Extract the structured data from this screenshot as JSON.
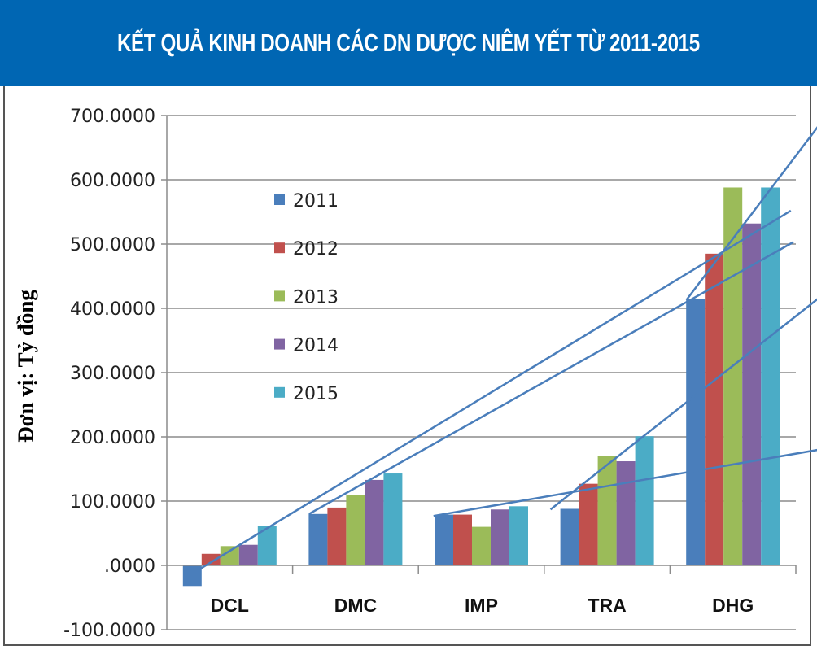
{
  "header": {
    "title": "KẾT QUẢ KINH DOANH CÁC DN DƯỢC NIÊM YẾT TỪ 2011-2015"
  },
  "chart_data": {
    "type": "bar",
    "title": "KẾT QUẢ KINH DOANH CÁC DN DƯỢC NIÊM YẾT TỪ 2011-2015",
    "xlabel": "",
    "ylabel": "Đơn vị:  Tỷ đồng",
    "ylim": [
      -100,
      700
    ],
    "yticks": [
      -100,
      0,
      100,
      200,
      300,
      400,
      500,
      600,
      700
    ],
    "ytick_labels": [
      "-100.0000",
      ".0000",
      "100.0000",
      "200.0000",
      "300.0000",
      "400.0000",
      "500.0000",
      "600.0000",
      "700.0000"
    ],
    "grid": true,
    "legend_position": "upper-left-inside",
    "categories": [
      "DCL",
      "DMC",
      "IMP",
      "TRA",
      "DHG"
    ],
    "series": [
      {
        "name": "2011",
        "color": "#4a7ebb",
        "values": [
          -32,
          80,
          79,
          88,
          414
        ]
      },
      {
        "name": "2012",
        "color": "#c0504d",
        "values": [
          18,
          90,
          79,
          127,
          485
        ]
      },
      {
        "name": "2013",
        "color": "#9bbb59",
        "values": [
          30,
          109,
          60,
          170,
          588
        ]
      },
      {
        "name": "2014",
        "color": "#8064a2",
        "values": [
          32,
          133,
          87,
          162,
          532
        ]
      },
      {
        "name": "2015",
        "color": "#4bacc6",
        "values": [
          61,
          143,
          92,
          201,
          588
        ]
      }
    ],
    "trend_lines": [
      {
        "color": "#4a7ebb",
        "from": [
          0.76,
          -6
        ],
        "to": [
          5.46,
          552
        ]
      },
      {
        "color": "#4a7ebb",
        "from": [
          1.63,
          80
        ],
        "to": [
          5.48,
          503
        ]
      },
      {
        "color": "#4a7ebb",
        "from": [
          2.62,
          77
        ],
        "to": [
          5.95,
          189
        ]
      },
      {
        "color": "#4a7ebb",
        "from": [
          3.55,
          87
        ],
        "to": [
          5.89,
          448
        ]
      },
      {
        "color": "#4a7ebb",
        "from": [
          4.63,
          413
        ],
        "to": [
          5.82,
          720
        ]
      }
    ]
  }
}
